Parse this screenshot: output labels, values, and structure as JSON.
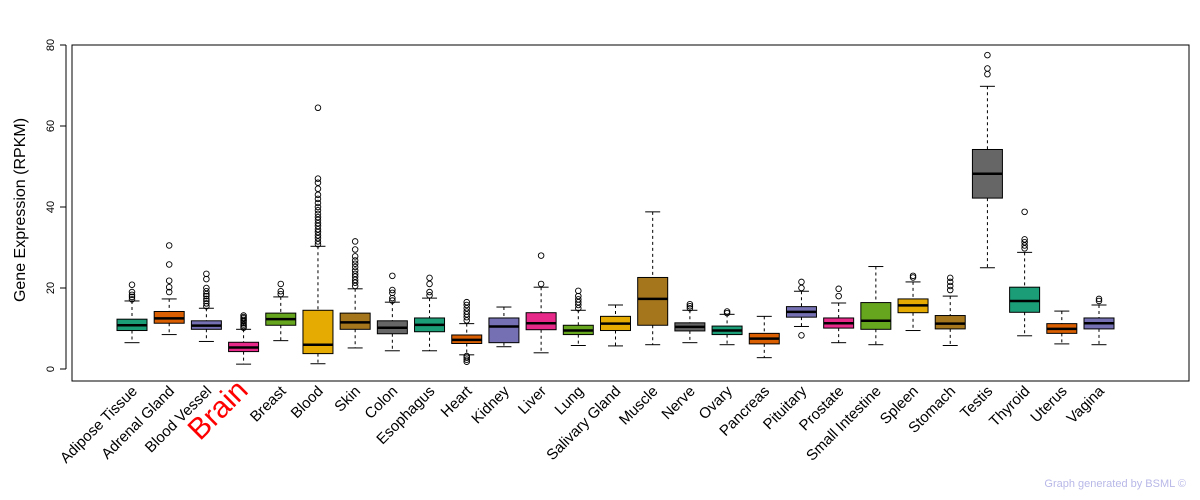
{
  "chart_data": {
    "type": "boxplot",
    "ylabel": "Gene Expression (RPKM)",
    "ylim": [
      -2,
      80
    ],
    "yticks": [
      0,
      20,
      40,
      60,
      80
    ],
    "highlight": "Brain",
    "highlight_color": "#ff0000",
    "categories": [
      {
        "name": "Adipose Tissue",
        "color": "#1b9e77",
        "min": 6.5,
        "q1": 9.5,
        "median": 10.8,
        "q3": 12.3,
        "max": 16.8,
        "outliers": [
          17.2,
          17.8,
          18.3,
          19.0,
          20.8
        ]
      },
      {
        "name": "Adrenal Gland",
        "color": "#d95f02",
        "min": 8.5,
        "q1": 11.3,
        "median": 12.5,
        "q3": 14.2,
        "max": 17.3,
        "outliers": [
          19.0,
          20.2,
          21.8,
          25.8,
          30.5
        ]
      },
      {
        "name": "Blood Vessel",
        "color": "#7570b3",
        "min": 6.8,
        "q1": 9.8,
        "median": 10.7,
        "q3": 11.9,
        "max": 15.0,
        "outliers": [
          15.5,
          16.2,
          16.8,
          17.3,
          18.0,
          18.5,
          19.2,
          20.0,
          22.2,
          23.5
        ]
      },
      {
        "name": "Brain",
        "color": "#e7298a",
        "min": 1.2,
        "q1": 4.3,
        "median": 5.3,
        "q3": 6.6,
        "max": 9.8,
        "outliers": [
          10.2,
          10.6,
          11.0,
          11.4,
          11.8,
          12.1,
          12.5,
          12.8,
          13.2
        ]
      },
      {
        "name": "Breast",
        "color": "#66a61e",
        "min": 7.0,
        "q1": 10.8,
        "median": 12.3,
        "q3": 13.8,
        "max": 17.8,
        "outliers": [
          18.5,
          19.2,
          21.0
        ]
      },
      {
        "name": "Blood",
        "color": "#e6ab02",
        "min": 1.3,
        "q1": 3.8,
        "median": 6.0,
        "q3": 14.5,
        "max": 30.3,
        "outliers": [
          30.8,
          31.5,
          32.3,
          33.0,
          33.8,
          34.5,
          35.3,
          36.0,
          36.8,
          37.5,
          38.3,
          39.2,
          40.0,
          41.0,
          42.0,
          43.0,
          44.5,
          46.0,
          47.0,
          64.5
        ]
      },
      {
        "name": "Skin",
        "color": "#a6761d",
        "min": 5.2,
        "q1": 9.8,
        "median": 11.5,
        "q3": 13.8,
        "max": 19.8,
        "outliers": [
          20.5,
          21.3,
          22.0,
          22.8,
          23.5,
          24.3,
          25.2,
          26.0,
          26.8,
          27.8,
          29.5,
          31.5
        ]
      },
      {
        "name": "Colon",
        "color": "#666666",
        "min": 4.5,
        "q1": 8.7,
        "median": 10.2,
        "q3": 11.9,
        "max": 16.5,
        "outliers": [
          16.9,
          17.5,
          18.8,
          19.5,
          23.0
        ]
      },
      {
        "name": "Esophagus",
        "color": "#1b9e77",
        "min": 4.5,
        "q1": 9.2,
        "median": 10.9,
        "q3": 12.6,
        "max": 17.5,
        "outliers": [
          18.2,
          19.0,
          21.0,
          22.5
        ]
      },
      {
        "name": "Heart",
        "color": "#d95f02",
        "min": 3.5,
        "q1": 6.3,
        "median": 7.2,
        "q3": 8.4,
        "max": 11.2,
        "outliers": [
          1.8,
          2.3,
          2.8,
          3.2,
          12.0,
          12.8,
          13.5,
          14.2,
          15.0,
          15.8,
          16.5
        ]
      },
      {
        "name": "Kidney",
        "color": "#7570b3",
        "min": 5.5,
        "q1": 6.5,
        "median": 10.5,
        "q3": 12.6,
        "max": 15.3,
        "outliers": []
      },
      {
        "name": "Liver",
        "color": "#e7298a",
        "min": 4.0,
        "q1": 9.7,
        "median": 11.3,
        "q3": 13.9,
        "max": 20.2,
        "outliers": [
          21.0,
          28.0
        ]
      },
      {
        "name": "Lung",
        "color": "#66a61e",
        "min": 5.8,
        "q1": 8.5,
        "median": 9.5,
        "q3": 10.8,
        "max": 14.5,
        "outliers": [
          15.0,
          15.8,
          16.5,
          17.2,
          18.0,
          19.3
        ]
      },
      {
        "name": "Salivary Gland",
        "color": "#e6ab02",
        "min": 5.7,
        "q1": 9.5,
        "median": 11.2,
        "q3": 13.0,
        "max": 15.8,
        "outliers": []
      },
      {
        "name": "Muscle",
        "color": "#a6761d",
        "min": 6.0,
        "q1": 10.8,
        "median": 17.3,
        "q3": 22.6,
        "max": 38.8,
        "outliers": []
      },
      {
        "name": "Nerve",
        "color": "#666666",
        "min": 6.5,
        "q1": 9.4,
        "median": 10.4,
        "q3": 11.4,
        "max": 14.5,
        "outliers": [
          15.0,
          15.5,
          16.0
        ]
      },
      {
        "name": "Ovary",
        "color": "#1b9e77",
        "min": 6.0,
        "q1": 8.5,
        "median": 9.5,
        "q3": 10.6,
        "max": 13.5,
        "outliers": [
          13.8,
          14.2
        ]
      },
      {
        "name": "Pancreas",
        "color": "#d95f02",
        "min": 2.8,
        "q1": 6.2,
        "median": 7.5,
        "q3": 8.8,
        "max": 13.0,
        "outliers": []
      },
      {
        "name": "Pituitary",
        "color": "#7570b3",
        "min": 10.5,
        "q1": 12.8,
        "median": 14.1,
        "q3": 15.4,
        "max": 19.2,
        "outliers": [
          8.3,
          20.0,
          21.5
        ]
      },
      {
        "name": "Prostate",
        "color": "#e7298a",
        "min": 6.5,
        "q1": 10.1,
        "median": 11.3,
        "q3": 12.6,
        "max": 16.3,
        "outliers": [
          18.0,
          19.8
        ]
      },
      {
        "name": "Small Intestine",
        "color": "#66a61e",
        "min": 6.0,
        "q1": 9.8,
        "median": 11.9,
        "q3": 16.4,
        "max": 25.3,
        "outliers": []
      },
      {
        "name": "Spleen",
        "color": "#e6ab02",
        "min": 9.5,
        "q1": 13.9,
        "median": 15.7,
        "q3": 17.3,
        "max": 21.5,
        "outliers": [
          22.6,
          23.0
        ]
      },
      {
        "name": "Stomach",
        "color": "#a6761d",
        "min": 5.8,
        "q1": 9.9,
        "median": 11.2,
        "q3": 13.2,
        "max": 18.0,
        "outliers": [
          19.5,
          20.5,
          21.5,
          22.5
        ]
      },
      {
        "name": "Testis",
        "color": "#666666",
        "min": 25.0,
        "q1": 42.2,
        "median": 48.2,
        "q3": 54.2,
        "max": 69.8,
        "outliers": [
          72.8,
          74.2,
          77.5
        ]
      },
      {
        "name": "Thyroid",
        "color": "#1b9e77",
        "min": 8.2,
        "q1": 14.0,
        "median": 16.8,
        "q3": 20.2,
        "max": 28.8,
        "outliers": [
          29.8,
          30.5,
          31.3,
          32.0,
          38.8
        ]
      },
      {
        "name": "Uterus",
        "color": "#d95f02",
        "min": 6.2,
        "q1": 8.8,
        "median": 9.9,
        "q3": 11.2,
        "max": 14.3,
        "outliers": []
      },
      {
        "name": "Vagina",
        "color": "#7570b3",
        "min": 6.0,
        "q1": 9.9,
        "median": 11.3,
        "q3": 12.6,
        "max": 15.8,
        "outliers": [
          16.8,
          17.3
        ]
      }
    ]
  },
  "credit": "Graph generated by BSML ©"
}
